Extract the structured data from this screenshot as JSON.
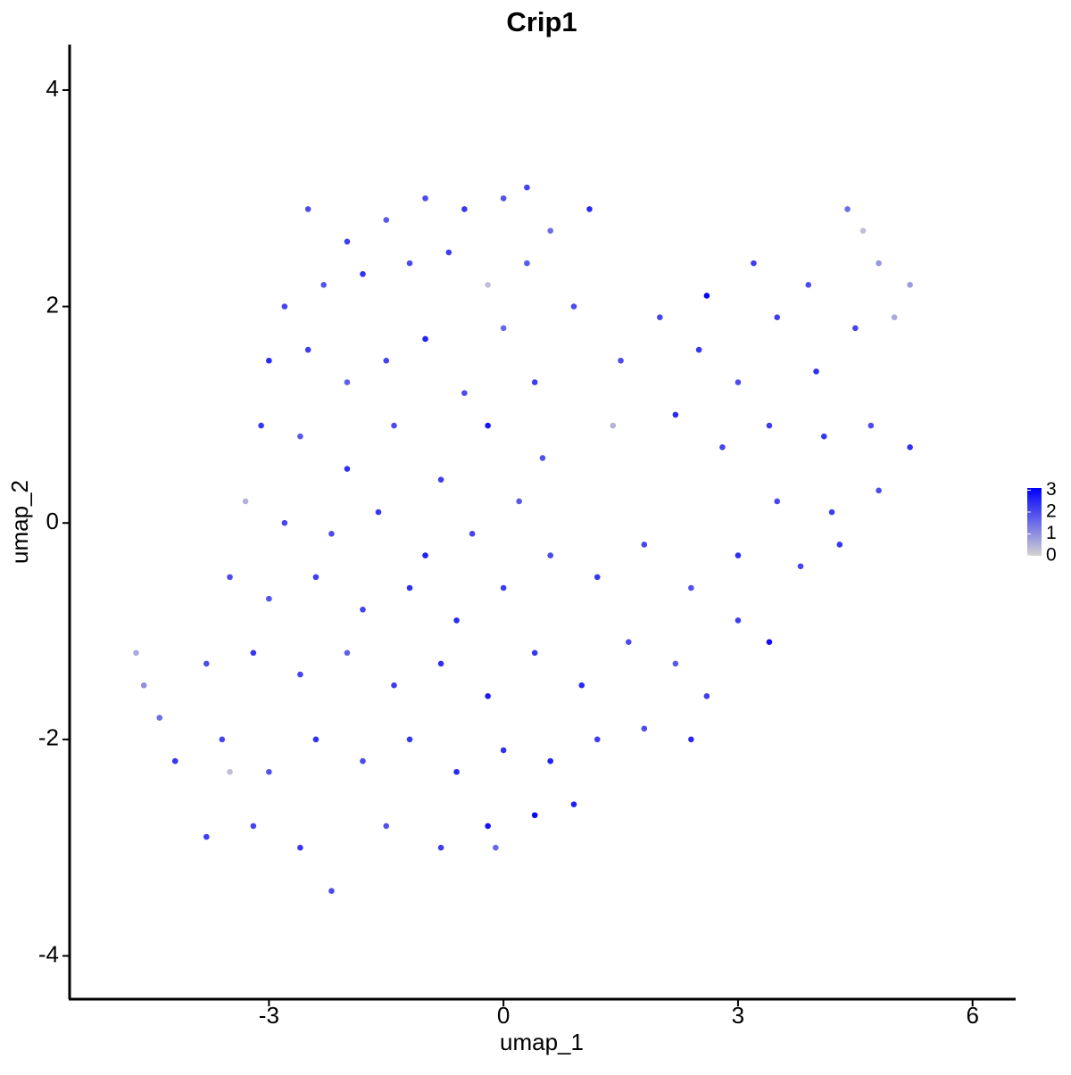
{
  "chart_data": {
    "type": "scatter",
    "title": "Crip1",
    "x_label": "umap_1",
    "y_label": "umap_2",
    "x": [
      -2.5,
      -2,
      -1.5,
      -1,
      -0.5,
      0,
      0.3,
      0.6,
      1.1,
      -2.8,
      -2.3,
      -1.8,
      -1.2,
      -0.7,
      -0.2,
      0.3,
      0.9,
      -3,
      -2.5,
      -2,
      -1.5,
      -1,
      -0.5,
      0,
      0.4,
      -3.1,
      -2.6,
      -2,
      -1.4,
      -0.8,
      -0.2,
      0.5,
      -3.3,
      -2.8,
      -2.2,
      -1.6,
      -1,
      -0.4,
      0.2,
      -3.5,
      -3,
      -2.4,
      -1.8,
      -1.2,
      -0.6,
      0,
      0.6,
      1.2,
      1.8,
      2.4,
      3,
      3.4,
      -3.8,
      -3.2,
      -2.6,
      -2,
      -1.4,
      -0.8,
      -0.2,
      0.4,
      1,
      1.6,
      2.2,
      2.6,
      -4.2,
      -3.6,
      -3,
      -2.4,
      -1.8,
      -1.2,
      -0.6,
      0,
      0.6,
      1.2,
      1.8,
      2.4,
      -3.8,
      -3.2,
      -2.6,
      -2.2,
      -1.5,
      -0.8,
      -0.2,
      0.4,
      0.9,
      -3.5,
      -4.7,
      -4.6,
      -4.4,
      -0.1,
      1.5,
      2,
      2.5,
      3,
      3.5,
      4,
      4.5,
      5,
      5.2,
      4.6,
      4.8,
      4.4,
      3.2,
      3.9,
      2.2,
      2.8,
      3.4,
      4.1,
      4.7,
      5.2,
      3.5,
      4.2,
      4.8,
      3,
      3.8,
      4.3,
      1.4,
      2.6
    ],
    "y": [
      2.9,
      2.6,
      2.8,
      3,
      2.9,
      3,
      3.1,
      2.7,
      2.9,
      2,
      2.2,
      2.3,
      2.4,
      2.5,
      2.2,
      2.4,
      2,
      1.5,
      1.6,
      1.3,
      1.5,
      1.7,
      1.2,
      1.8,
      1.3,
      0.9,
      0.8,
      0.5,
      0.9,
      0.4,
      0.9,
      0.6,
      0.2,
      0,
      -0.1,
      0.1,
      -0.3,
      -0.1,
      0.2,
      -0.5,
      -0.7,
      -0.5,
      -0.8,
      -0.6,
      -0.9,
      -0.6,
      -0.3,
      -0.5,
      -0.2,
      -0.6,
      -0.9,
      -1.1,
      -1.3,
      -1.2,
      -1.4,
      -1.2,
      -1.5,
      -1.3,
      -1.6,
      -1.2,
      -1.5,
      -1.1,
      -1.3,
      -1.6,
      -2.2,
      -2,
      -2.3,
      -2,
      -2.2,
      -2,
      -2.3,
      -2.1,
      -2.2,
      -2,
      -1.9,
      -2,
      -2.9,
      -2.8,
      -3,
      -3.4,
      -2.8,
      -3,
      -2.8,
      -2.7,
      -2.6,
      -2.3,
      -1.2,
      -1.5,
      -1.8,
      -3,
      1.5,
      1.9,
      1.6,
      1.3,
      1.9,
      1.4,
      1.8,
      1.9,
      2.2,
      2.7,
      2.4,
      2.9,
      2.4,
      2.2,
      1,
      0.7,
      0.9,
      0.8,
      0.9,
      0.7,
      0.2,
      0.1,
      0.3,
      -0.3,
      -0.4,
      -0.2,
      0.9,
      2.1
    ],
    "values": [
      2,
      2.2,
      1.8,
      2,
      2.3,
      1.9,
      2.1,
      1.5,
      2.5,
      2.1,
      1.9,
      2.4,
      2,
      2.2,
      0.3,
      1.8,
      2,
      2.5,
      2.2,
      1.7,
      2.1,
      2.6,
      2,
      1.6,
      2.2,
      2.3,
      1.8,
      2.4,
      2,
      2.2,
      2.8,
      1.9,
      0.5,
      2.1,
      2,
      2.3,
      2.6,
      2.1,
      1.8,
      2,
      1.9,
      2.2,
      2.1,
      2.4,
      2.5,
      2.2,
      2,
      2.3,
      2.1,
      1.9,
      2.2,
      2.9,
      2,
      2.3,
      2.1,
      1.7,
      2.2,
      2.4,
      2.7,
      2.3,
      2.5,
      2,
      1.8,
      2.2,
      2.3,
      2.1,
      1.9,
      2.4,
      2,
      2.3,
      2.5,
      2.4,
      2.6,
      2.2,
      2,
      2.5,
      2.2,
      2.1,
      2.3,
      2,
      1.9,
      2.2,
      2.8,
      3,
      2.6,
      0.3,
      0.6,
      1,
      1.5,
      1.6,
      2,
      2.1,
      2.3,
      2,
      2.2,
      2.4,
      2.1,
      0.6,
      0.8,
      0.3,
      0.9,
      1.5,
      2.2,
      2,
      2.5,
      2.1,
      2.2,
      2.3,
      2,
      2.4,
      2.1,
      2.2,
      2,
      2.4,
      2.1,
      2.3,
      0.5,
      3
    ],
    "xlim": [
      -5.55,
      6.54
    ],
    "ylim": [
      -4.4,
      4.42
    ],
    "xticks": [
      -3,
      0,
      3,
      6
    ],
    "yticks": [
      -4,
      -2,
      0,
      2,
      4
    ],
    "color_low": "#d3d3d3",
    "color_high": "#0000ff",
    "clim": [
      0,
      3.1
    ],
    "legend_ticks": [
      0,
      1,
      2,
      3
    ]
  }
}
